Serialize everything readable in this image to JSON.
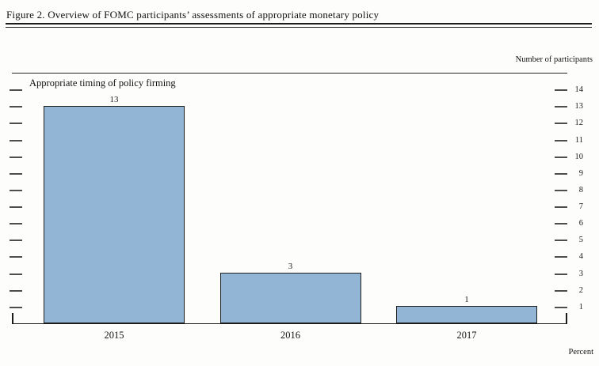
{
  "header": {
    "title": "Figure 2. Overview of FOMC participants’ assessments of appropriate monetary policy"
  },
  "notes": {
    "right_axis": "Number of participants",
    "bottom_right": "Percent"
  },
  "chart_data": {
    "type": "bar",
    "title": "Appropriate timing of policy firming",
    "categories": [
      "2015",
      "2016",
      "2017"
    ],
    "values": [
      13,
      3,
      1
    ],
    "data_labels": [
      "13",
      "3",
      "1"
    ],
    "xlabel": "Percent",
    "ylabel": "Number of participants",
    "y_ticks": [
      1,
      2,
      3,
      4,
      5,
      6,
      7,
      8,
      9,
      10,
      11,
      12,
      13,
      14
    ],
    "ylim": [
      0,
      15
    ],
    "tick_sides": "left-and-right",
    "grid": false,
    "legend": "none",
    "bar_color": "#92b5d6",
    "bar_border_color": "#1f1f1f"
  },
  "colors": {
    "axis": "#1a1a1a",
    "tick": "#4d4d4d",
    "text": "#121212",
    "background": "#fdfdfc"
  }
}
